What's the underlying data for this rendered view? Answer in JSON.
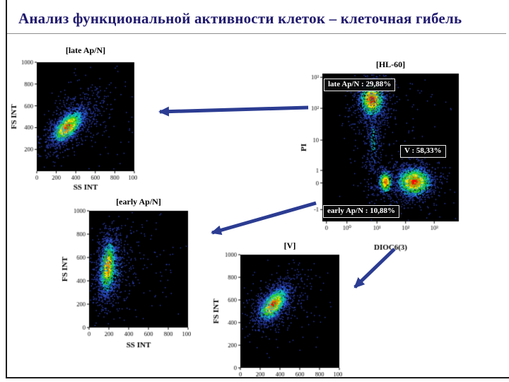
{
  "slide": {
    "title": "Анализ функциональной активности клеток – клеточная гибель"
  },
  "colors": {
    "title": "#201a6e",
    "arrow": "#2b3c92",
    "plot_background": "#000000",
    "density_scale": [
      "#ff0a00",
      "#ff8d00",
      "#ffe800",
      "#30d32a",
      "#12c9c9",
      "#2f62e8",
      "#2c3fb0"
    ]
  },
  "chart_data": [
    {
      "id": "late-apn",
      "type": "scatter",
      "title": "[late Ap/N]",
      "xlabel": "SS INT",
      "ylabel": "FS INT",
      "xlim": [
        0,
        1000
      ],
      "ylim": [
        0,
        1000
      ],
      "grid": false,
      "bg": "#000000",
      "xlabel_dy": 26,
      "xticks": [
        {
          "pos": 0,
          "label": "0"
        },
        {
          "pos": 200,
          "label": "200"
        },
        {
          "pos": 400,
          "label": "400"
        },
        {
          "pos": 600,
          "label": "600"
        },
        {
          "pos": 800,
          "label": "800"
        },
        {
          "pos": 1000,
          "label": "1000"
        }
      ],
      "yticks": [
        {
          "pos": 200,
          "label": "200"
        },
        {
          "pos": 400,
          "label": "400"
        },
        {
          "pos": 600,
          "label": "600"
        },
        {
          "pos": 800,
          "label": "800"
        },
        {
          "pos": 1000,
          "label": "1000"
        }
      ],
      "clusters": [
        {
          "x": 310,
          "y": 410,
          "sx": 95,
          "sy": 48,
          "rot": 40,
          "n": 1700,
          "rmin": 0
        },
        {
          "x": 340,
          "y": 440,
          "sx": 200,
          "sy": 95,
          "rot": 40,
          "n": 650,
          "rmin": 0.45
        },
        {
          "x": 520,
          "y": 520,
          "sx": 270,
          "sy": 240,
          "rot": 0,
          "n": 130,
          "rmin": 0.85
        }
      ]
    },
    {
      "id": "hl60",
      "type": "scatter",
      "title": "[HL-60]",
      "xlabel": "DIOC6(3)",
      "ylabel": "PI",
      "scale_note": "logarithmic axes, positions normalized 0-1",
      "xlim": [
        0,
        1
      ],
      "ylim": [
        0,
        1
      ],
      "grid": false,
      "bg": "#000000",
      "xlabel_dy": 40,
      "xticks": [
        {
          "pos": 0.03,
          "label": "0"
        },
        {
          "pos": 0.18,
          "label": "10⁰"
        },
        {
          "pos": 0.4,
          "label": "10¹"
        },
        {
          "pos": 0.61,
          "label": "10²"
        },
        {
          "pos": 0.82,
          "label": "10³"
        }
      ],
      "yticks": [
        {
          "pos": 0.08,
          "label": "-1"
        },
        {
          "pos": 0.26,
          "label": "0"
        },
        {
          "pos": 0.345,
          "label": "1"
        },
        {
          "pos": 0.55,
          "label": "10"
        },
        {
          "pos": 0.765,
          "label": "10²"
        },
        {
          "pos": 0.975,
          "label": "10³"
        }
      ],
      "annotations": [
        {
          "population": "late Ap/N",
          "percent": "29,88%",
          "text": "late Ap/N : 29,88%"
        },
        {
          "population": "V",
          "percent": "58,33%",
          "text": "V : 58,33%"
        },
        {
          "population": "early Ap/N",
          "percent": "10,88%",
          "text": "early Ap/N : 10,88%"
        }
      ],
      "clusters": [
        {
          "x": 0.36,
          "y": 0.83,
          "sx": 0.045,
          "sy": 0.06,
          "rot": 0,
          "n": 1100,
          "rmin": 0
        },
        {
          "x": 0.36,
          "y": 0.81,
          "sx": 0.085,
          "sy": 0.11,
          "rot": 0,
          "n": 450,
          "rmin": 0.4
        },
        {
          "x": 0.37,
          "y": 0.55,
          "sx": 0.035,
          "sy": 0.22,
          "rot": 0,
          "n": 350,
          "rmin": 0.6
        },
        {
          "x": 0.67,
          "y": 0.27,
          "sx": 0.065,
          "sy": 0.05,
          "rot": 0,
          "n": 1500,
          "rmin": 0
        },
        {
          "x": 0.67,
          "y": 0.27,
          "sx": 0.11,
          "sy": 0.085,
          "rot": 0,
          "n": 500,
          "rmin": 0.4
        },
        {
          "x": 0.46,
          "y": 0.27,
          "sx": 0.03,
          "sy": 0.045,
          "rot": 0,
          "n": 420,
          "rmin": 0.12
        },
        {
          "x": 0.5,
          "y": 0.55,
          "sx": 0.28,
          "sy": 0.28,
          "rot": 0,
          "n": 140,
          "rmin": 0.85
        }
      ]
    },
    {
      "id": "early-apn",
      "type": "scatter",
      "title": "[early Ap/N]",
      "xlabel": "SS INT",
      "ylabel": "FS INT",
      "xlim": [
        0,
        1000
      ],
      "ylim": [
        0,
        1000
      ],
      "grid": false,
      "bg": "#000000",
      "xlabel_dy": 28,
      "xticks": [
        {
          "pos": 0,
          "label": "0"
        },
        {
          "pos": 200,
          "label": "200"
        },
        {
          "pos": 400,
          "label": "400"
        },
        {
          "pos": 600,
          "label": "600"
        },
        {
          "pos": 800,
          "label": "800"
        },
        {
          "pos": 1000,
          "label": "1000"
        }
      ],
      "yticks": [
        {
          "pos": 0,
          "label": "0"
        },
        {
          "pos": 200,
          "label": "200"
        },
        {
          "pos": 400,
          "label": "400"
        },
        {
          "pos": 600,
          "label": "600"
        },
        {
          "pos": 800,
          "label": "800"
        },
        {
          "pos": 1000,
          "label": "1000"
        }
      ],
      "clusters": [
        {
          "x": 185,
          "y": 520,
          "sx": 48,
          "sy": 140,
          "rot": -6,
          "n": 1300,
          "rmin": 0.15
        },
        {
          "x": 225,
          "y": 500,
          "sx": 110,
          "sy": 190,
          "rot": -6,
          "n": 450,
          "rmin": 0.5
        },
        {
          "x": 480,
          "y": 520,
          "sx": 250,
          "sy": 230,
          "rot": 0,
          "n": 120,
          "rmin": 0.85
        }
      ]
    },
    {
      "id": "v",
      "type": "scatter",
      "title": "[V]",
      "xlabel": "",
      "ylabel": "FS INT",
      "xlim": [
        0,
        1000
      ],
      "ylim": [
        0,
        1000
      ],
      "grid": false,
      "bg": "#000000",
      "xticks": [
        {
          "pos": 0,
          "label": "0"
        },
        {
          "pos": 200,
          "label": "200"
        },
        {
          "pos": 400,
          "label": "400"
        },
        {
          "pos": 600,
          "label": "600"
        },
        {
          "pos": 800,
          "label": "800"
        },
        {
          "pos": 1000,
          "label": "1000"
        }
      ],
      "yticks": [
        {
          "pos": 0,
          "label": "0"
        },
        {
          "pos": 200,
          "label": "200"
        },
        {
          "pos": 400,
          "label": "400"
        },
        {
          "pos": 600,
          "label": "600"
        },
        {
          "pos": 800,
          "label": "800"
        },
        {
          "pos": 1000,
          "label": "1000"
        }
      ],
      "clusters": [
        {
          "x": 330,
          "y": 565,
          "sx": 90,
          "sy": 48,
          "rot": 45,
          "n": 1700,
          "rmin": 0
        },
        {
          "x": 355,
          "y": 585,
          "sx": 165,
          "sy": 85,
          "rot": 45,
          "n": 600,
          "rmin": 0.45
        },
        {
          "x": 450,
          "y": 560,
          "sx": 230,
          "sy": 220,
          "rot": 0,
          "n": 110,
          "rmin": 0.88
        }
      ]
    }
  ]
}
